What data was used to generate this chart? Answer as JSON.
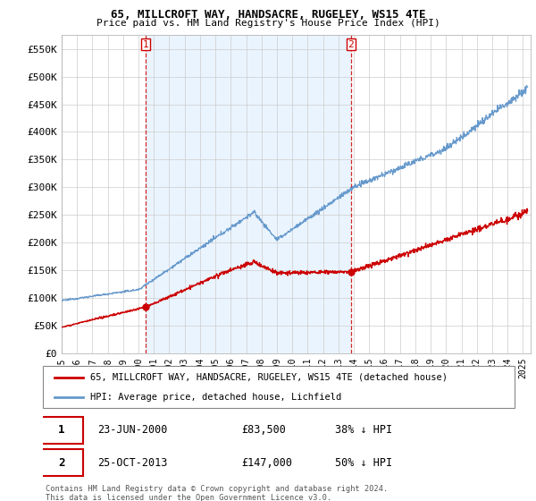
{
  "title1": "65, MILLCROFT WAY, HANDSACRE, RUGELEY, WS15 4TE",
  "title2": "Price paid vs. HM Land Registry's House Price Index (HPI)",
  "legend_line1": "65, MILLCROFT WAY, HANDSACRE, RUGELEY, WS15 4TE (detached house)",
  "legend_line2": "HPI: Average price, detached house, Lichfield",
  "annotation1_label": "1",
  "annotation1_date": "23-JUN-2000",
  "annotation1_price": "£83,500",
  "annotation1_hpi": "38% ↓ HPI",
  "annotation2_label": "2",
  "annotation2_date": "25-OCT-2013",
  "annotation2_price": "£147,000",
  "annotation2_hpi": "50% ↓ HPI",
  "footer": "Contains HM Land Registry data © Crown copyright and database right 2024.\nThis data is licensed under the Open Government Licence v3.0.",
  "price_color": "#cc0000",
  "hpi_color": "#6699cc",
  "shade_color": "#ddeeff",
  "ylim": [
    0,
    575000
  ],
  "yticks": [
    0,
    50000,
    100000,
    150000,
    200000,
    250000,
    300000,
    350000,
    400000,
    450000,
    500000,
    550000
  ],
  "ytick_labels": [
    "£0",
    "£50K",
    "£100K",
    "£150K",
    "£200K",
    "£250K",
    "£300K",
    "£350K",
    "£400K",
    "£450K",
    "£500K",
    "£550K"
  ],
  "xmin": 1995.0,
  "xmax": 2025.5,
  "sale1_x": 2000.48,
  "sale1_y": 83500,
  "sale2_x": 2013.82,
  "sale2_y": 147000
}
